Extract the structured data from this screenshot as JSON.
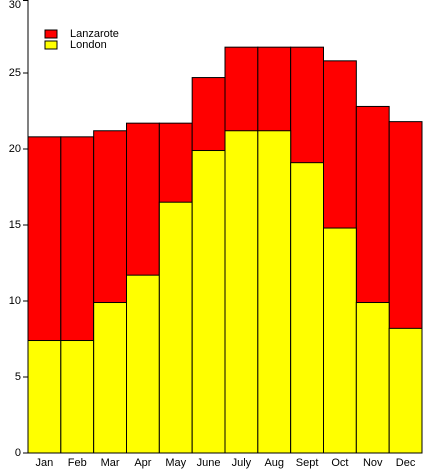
{
  "chart_data": {
    "type": "bar",
    "mode": "overlap",
    "categories": [
      "Jan",
      "Feb",
      "Mar",
      "Apr",
      "May",
      "June",
      "July",
      "Aug",
      "Sept",
      "Oct",
      "Nov",
      "Dec"
    ],
    "series": [
      {
        "name": "Lanzarote",
        "color": "#ff0000",
        "values": [
          20.8,
          20.8,
          21.2,
          21.7,
          21.7,
          24.7,
          26.7,
          26.7,
          26.7,
          25.8,
          22.8,
          21.8
        ]
      },
      {
        "name": "London",
        "color": "#ffff00",
        "values": [
          7.4,
          7.4,
          9.9,
          11.7,
          16.5,
          19.9,
          21.2,
          21.2,
          19.1,
          14.8,
          9.9,
          8.2
        ]
      }
    ],
    "ylim": [
      0,
      30
    ],
    "yticks": [
      0,
      5,
      10,
      15,
      20,
      25,
      30
    ],
    "grid": false,
    "legend": "upper left"
  }
}
